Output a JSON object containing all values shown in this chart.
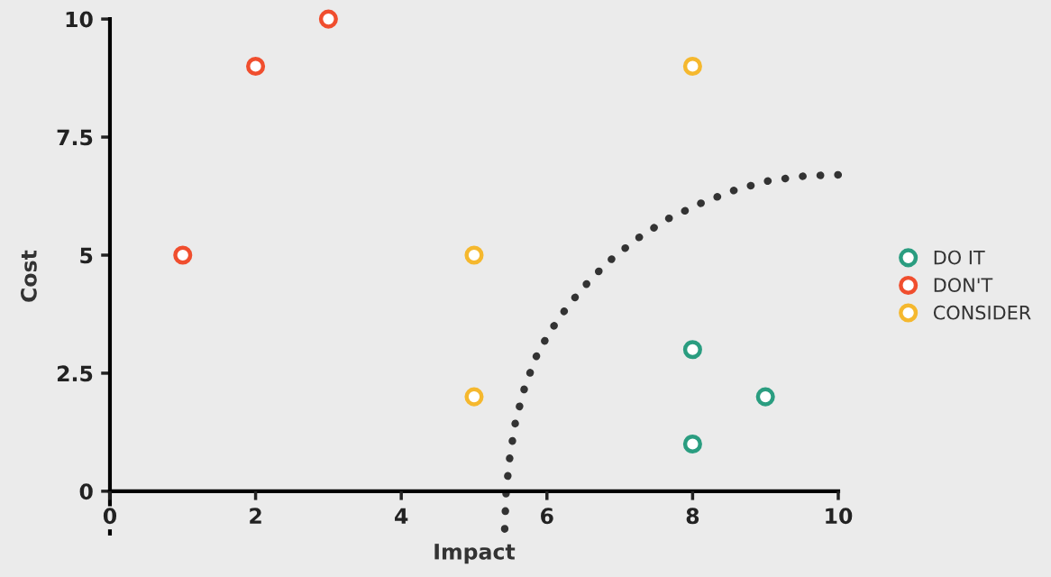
{
  "chart_data": {
    "type": "scatter",
    "xlabel": "Impact",
    "ylabel": "Cost",
    "xlim": [
      0,
      10
    ],
    "xticks": [
      0,
      2,
      4,
      6,
      8,
      10
    ],
    "ylim": [
      -0.9,
      10
    ],
    "yticks": [
      0,
      2.5,
      5,
      7.5,
      10
    ],
    "grid": false,
    "legend": "right",
    "marker": "circle",
    "series": [
      {
        "name": "DO IT",
        "color": "#2a9d80",
        "x": [
          8,
          9,
          8
        ],
        "values": [
          3,
          2,
          1
        ]
      },
      {
        "name": "DON'T",
        "color": "#f04e2e",
        "x": [
          1,
          2,
          3
        ],
        "values": [
          5,
          9,
          10
        ]
      },
      {
        "name": "CONSIDER",
        "color": "#f5b82e",
        "x": [
          8,
          5,
          5
        ],
        "values": [
          9,
          5,
          2
        ]
      },
      {
        "type": "line",
        "color": "#333333",
        "line_style": "dotted",
        "marker": "none",
        "x": [
          5.42,
          5.44,
          5.49,
          5.57,
          5.7,
          5.88,
          6.16,
          6.47,
          6.82,
          7.22,
          7.65,
          8.13,
          8.6,
          9.06,
          9.56,
          10.0
        ],
        "values": [
          -0.8,
          0.0,
          0.72,
          1.49,
          2.23,
          2.96,
          3.66,
          4.27,
          4.83,
          5.33,
          5.76,
          6.11,
          6.39,
          6.58,
          6.68,
          6.7
        ]
      }
    ]
  }
}
